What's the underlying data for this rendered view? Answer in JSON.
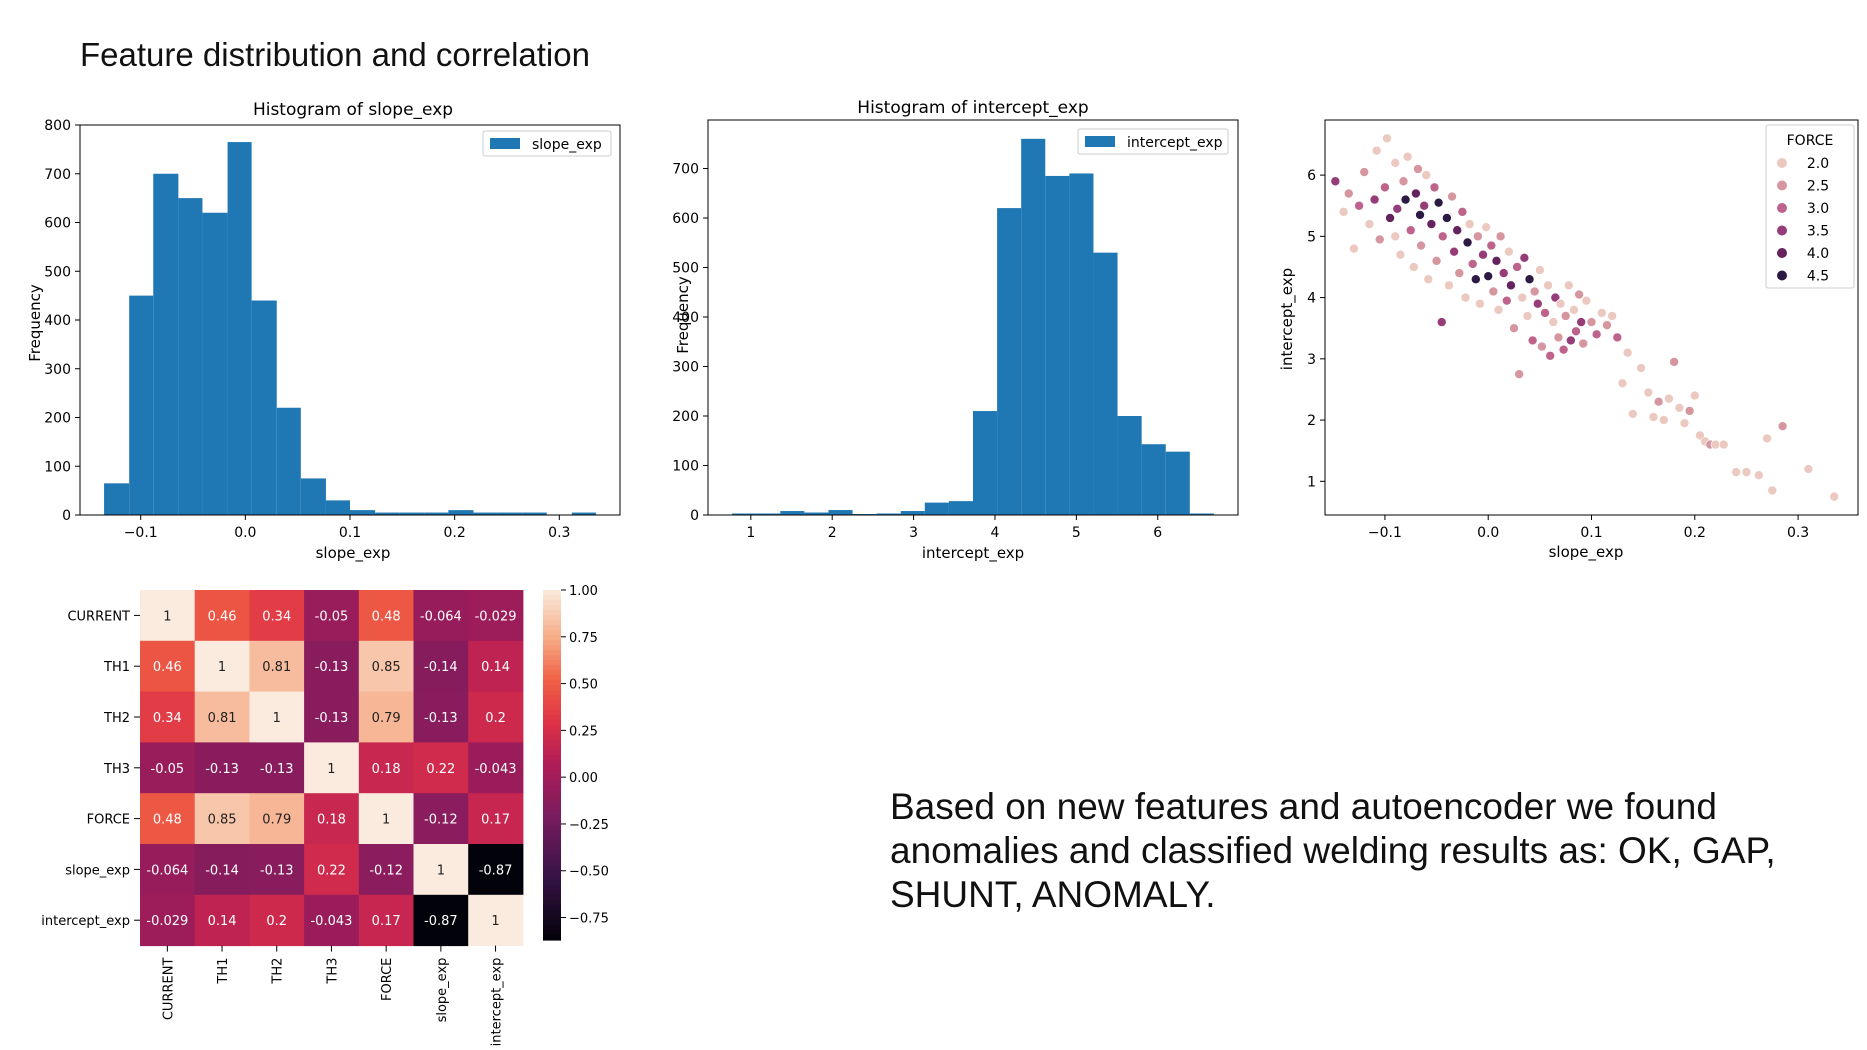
{
  "slide": {
    "title": "Feature distribution and correlation",
    "note": "Based on new features and autoencoder we found anomalies and classified welding results as: OK, GAP, SHUNT, ANOMALY."
  },
  "colors": {
    "bar": "#1f77b4",
    "scatter_low": "#ecc9c0",
    "scatter_high": "#2c1a45"
  },
  "chart_data": [
    {
      "type": "bar",
      "title": "Histogram of slope_exp",
      "xlabel": "slope_exp",
      "ylabel": "Frequency",
      "legend": [
        "slope_exp"
      ],
      "legend_position": "top-right",
      "grid": false,
      "bin_edges": [
        -0.135,
        -0.111,
        -0.088,
        -0.064,
        -0.041,
        -0.017,
        0.006,
        0.03,
        0.053,
        0.077,
        0.1,
        0.124,
        0.147,
        0.171,
        0.194,
        0.218,
        0.241,
        0.265,
        0.288,
        0.312,
        0.335
      ],
      "values": [
        65,
        450,
        700,
        650,
        620,
        765,
        440,
        220,
        75,
        30,
        10,
        5,
        5,
        5,
        10,
        5,
        5,
        5,
        0,
        5
      ],
      "xlim": [
        -0.158,
        0.358
      ],
      "ylim": [
        0,
        800
      ],
      "xticks": [
        -0.1,
        0.0,
        0.1,
        0.2,
        0.3
      ],
      "xtick_labels": [
        "−0.1",
        "0.0",
        "0.1",
        "0.2",
        "0.3"
      ],
      "yticks": [
        0,
        100,
        200,
        300,
        400,
        500,
        600,
        700,
        800
      ]
    },
    {
      "type": "bar",
      "title": "Histogram of intercept_exp",
      "xlabel": "intercept_exp",
      "ylabel": "Frequency",
      "legend": [
        "intercept_exp"
      ],
      "legend_position": "top-right",
      "grid": false,
      "bin_edges": [
        0.77,
        1.066,
        1.362,
        1.658,
        1.954,
        2.25,
        2.546,
        2.842,
        3.138,
        3.434,
        3.73,
        4.026,
        4.322,
        4.618,
        4.914,
        5.21,
        5.506,
        5.802,
        6.098,
        6.394,
        6.69
      ],
      "values": [
        3,
        3,
        8,
        5,
        10,
        2,
        3,
        8,
        25,
        28,
        210,
        620,
        760,
        685,
        690,
        530,
        200,
        143,
        128,
        3
      ],
      "xlim": [
        0.474,
        6.986
      ],
      "ylim": [
        0,
        798
      ],
      "xticks": [
        1,
        2,
        3,
        4,
        5,
        6
      ],
      "yticks": [
        0,
        100,
        200,
        300,
        400,
        500,
        600,
        700
      ]
    },
    {
      "type": "scatter",
      "xlabel": "slope_exp",
      "ylabel": "intercept_exp",
      "legend_title": "FORCE",
      "legend": [
        "2.0",
        "2.5",
        "3.0",
        "3.5",
        "4.0",
        "4.5"
      ],
      "legend_position": "top-right",
      "grid": false,
      "xlim": [
        -0.158,
        0.358
      ],
      "ylim": [
        0.45,
        6.9
      ],
      "xticks": [
        -0.1,
        0.0,
        0.1,
        0.2,
        0.3
      ],
      "xtick_labels": [
        "−0.1",
        "0.0",
        "0.1",
        "0.2",
        "0.3"
      ],
      "yticks": [
        1,
        2,
        3,
        4,
        5,
        6
      ],
      "points": [
        {
          "x": -0.148,
          "y": 5.9,
          "force": 3.5
        },
        {
          "x": -0.14,
          "y": 5.4,
          "force": 2.0
        },
        {
          "x": -0.135,
          "y": 5.7,
          "force": 2.5
        },
        {
          "x": -0.13,
          "y": 4.8,
          "force": 2.0
        },
        {
          "x": -0.125,
          "y": 5.5,
          "force": 3.0
        },
        {
          "x": -0.12,
          "y": 6.05,
          "force": 2.5
        },
        {
          "x": -0.115,
          "y": 5.2,
          "force": 2.0
        },
        {
          "x": -0.11,
          "y": 5.6,
          "force": 3.5
        },
        {
          "x": -0.108,
          "y": 6.4,
          "force": 2.0
        },
        {
          "x": -0.105,
          "y": 4.95,
          "force": 2.5
        },
        {
          "x": -0.1,
          "y": 5.8,
          "force": 3.0
        },
        {
          "x": -0.098,
          "y": 6.6,
          "force": 2.0
        },
        {
          "x": -0.095,
          "y": 5.3,
          "force": 4.0
        },
        {
          "x": -0.09,
          "y": 6.2,
          "force": 2.0
        },
        {
          "x": -0.09,
          "y": 5.0,
          "force": 2.0
        },
        {
          "x": -0.088,
          "y": 5.45,
          "force": 3.5
        },
        {
          "x": -0.085,
          "y": 4.7,
          "force": 2.0
        },
        {
          "x": -0.082,
          "y": 5.9,
          "force": 2.5
        },
        {
          "x": -0.08,
          "y": 5.6,
          "force": 4.5
        },
        {
          "x": -0.078,
          "y": 6.3,
          "force": 2.0
        },
        {
          "x": -0.075,
          "y": 5.1,
          "force": 3.0
        },
        {
          "x": -0.072,
          "y": 4.5,
          "force": 2.0
        },
        {
          "x": -0.07,
          "y": 5.7,
          "force": 4.0
        },
        {
          "x": -0.068,
          "y": 6.1,
          "force": 2.5
        },
        {
          "x": -0.066,
          "y": 5.35,
          "force": 4.5
        },
        {
          "x": -0.065,
          "y": 4.85,
          "force": 2.5
        },
        {
          "x": -0.062,
          "y": 5.5,
          "force": 3.5
        },
        {
          "x": -0.06,
          "y": 6.0,
          "force": 2.0
        },
        {
          "x": -0.058,
          "y": 4.3,
          "force": 2.0
        },
        {
          "x": -0.055,
          "y": 5.2,
          "force": 4.0
        },
        {
          "x": -0.052,
          "y": 5.8,
          "force": 3.0
        },
        {
          "x": -0.05,
          "y": 4.6,
          "force": 2.5
        },
        {
          "x": -0.048,
          "y": 5.55,
          "force": 4.5
        },
        {
          "x": -0.045,
          "y": 3.6,
          "force": 3.5
        },
        {
          "x": -0.044,
          "y": 5.0,
          "force": 3.0
        },
        {
          "x": -0.04,
          "y": 5.3,
          "force": 4.5
        },
        {
          "x": -0.038,
          "y": 4.2,
          "force": 2.0
        },
        {
          "x": -0.035,
          "y": 5.65,
          "force": 2.5
        },
        {
          "x": -0.033,
          "y": 4.75,
          "force": 3.5
        },
        {
          "x": -0.03,
          "y": 5.1,
          "force": 4.0
        },
        {
          "x": -0.028,
          "y": 4.4,
          "force": 2.5
        },
        {
          "x": -0.025,
          "y": 5.4,
          "force": 3.0
        },
        {
          "x": -0.022,
          "y": 4.0,
          "force": 2.0
        },
        {
          "x": -0.02,
          "y": 4.9,
          "force": 4.5
        },
        {
          "x": -0.018,
          "y": 5.2,
          "force": 2.0
        },
        {
          "x": -0.015,
          "y": 4.55,
          "force": 3.0
        },
        {
          "x": -0.012,
          "y": 4.3,
          "force": 4.5
        },
        {
          "x": -0.01,
          "y": 5.0,
          "force": 2.5
        },
        {
          "x": -0.008,
          "y": 3.9,
          "force": 2.0
        },
        {
          "x": -0.005,
          "y": 4.7,
          "force": 3.5
        },
        {
          "x": -0.002,
          "y": 5.15,
          "force": 2.0
        },
        {
          "x": 0.0,
          "y": 4.35,
          "force": 4.5
        },
        {
          "x": 0.003,
          "y": 4.85,
          "force": 3.0
        },
        {
          "x": 0.005,
          "y": 4.1,
          "force": 2.5
        },
        {
          "x": 0.008,
          "y": 4.6,
          "force": 4.0
        },
        {
          "x": 0.01,
          "y": 3.8,
          "force": 2.0
        },
        {
          "x": 0.012,
          "y": 5.0,
          "force": 2.5
        },
        {
          "x": 0.015,
          "y": 4.4,
          "force": 3.5
        },
        {
          "x": 0.018,
          "y": 3.95,
          "force": 3.0
        },
        {
          "x": 0.02,
          "y": 4.75,
          "force": 2.0
        },
        {
          "x": 0.022,
          "y": 4.2,
          "force": 4.0
        },
        {
          "x": 0.025,
          "y": 3.5,
          "force": 2.5
        },
        {
          "x": 0.028,
          "y": 4.5,
          "force": 3.0
        },
        {
          "x": 0.03,
          "y": 2.75,
          "force": 2.5
        },
        {
          "x": 0.033,
          "y": 4.0,
          "force": 2.0
        },
        {
          "x": 0.035,
          "y": 4.65,
          "force": 3.5
        },
        {
          "x": 0.038,
          "y": 3.7,
          "force": 2.0
        },
        {
          "x": 0.04,
          "y": 4.3,
          "force": 4.5
        },
        {
          "x": 0.043,
          "y": 3.3,
          "force": 3.0
        },
        {
          "x": 0.045,
          "y": 4.1,
          "force": 2.5
        },
        {
          "x": 0.048,
          "y": 3.9,
          "force": 3.5
        },
        {
          "x": 0.05,
          "y": 4.45,
          "force": 2.0
        },
        {
          "x": 0.052,
          "y": 3.2,
          "force": 2.5
        },
        {
          "x": 0.055,
          "y": 3.75,
          "force": 3.0
        },
        {
          "x": 0.058,
          "y": 4.2,
          "force": 2.0
        },
        {
          "x": 0.06,
          "y": 3.05,
          "force": 3.0
        },
        {
          "x": 0.063,
          "y": 3.6,
          "force": 2.0
        },
        {
          "x": 0.065,
          "y": 4.0,
          "force": 3.5
        },
        {
          "x": 0.068,
          "y": 3.35,
          "force": 2.5
        },
        {
          "x": 0.07,
          "y": 3.9,
          "force": 2.0
        },
        {
          "x": 0.073,
          "y": 3.15,
          "force": 3.0
        },
        {
          "x": 0.075,
          "y": 3.7,
          "force": 2.5
        },
        {
          "x": 0.078,
          "y": 4.2,
          "force": 2.0
        },
        {
          "x": 0.08,
          "y": 3.3,
          "force": 3.5
        },
        {
          "x": 0.083,
          "y": 3.8,
          "force": 2.0
        },
        {
          "x": 0.085,
          "y": 3.45,
          "force": 3.0
        },
        {
          "x": 0.088,
          "y": 4.05,
          "force": 2.5
        },
        {
          "x": 0.09,
          "y": 3.6,
          "force": 3.5
        },
        {
          "x": 0.092,
          "y": 3.25,
          "force": 2.5
        },
        {
          "x": 0.095,
          "y": 3.95,
          "force": 2.0
        },
        {
          "x": 0.1,
          "y": 3.6,
          "force": 2.5
        },
        {
          "x": 0.105,
          "y": 3.4,
          "force": 3.0
        },
        {
          "x": 0.11,
          "y": 3.75,
          "force": 2.0
        },
        {
          "x": 0.115,
          "y": 3.55,
          "force": 2.5
        },
        {
          "x": 0.12,
          "y": 3.7,
          "force": 2.0
        },
        {
          "x": 0.125,
          "y": 3.35,
          "force": 3.0
        },
        {
          "x": 0.13,
          "y": 2.6,
          "force": 2.0
        },
        {
          "x": 0.135,
          "y": 3.1,
          "force": 2.0
        },
        {
          "x": 0.14,
          "y": 2.1,
          "force": 2.0
        },
        {
          "x": 0.148,
          "y": 2.85,
          "force": 2.0
        },
        {
          "x": 0.155,
          "y": 2.45,
          "force": 2.0
        },
        {
          "x": 0.16,
          "y": 2.05,
          "force": 2.0
        },
        {
          "x": 0.165,
          "y": 2.3,
          "force": 2.5
        },
        {
          "x": 0.17,
          "y": 2.0,
          "force": 2.0
        },
        {
          "x": 0.175,
          "y": 2.35,
          "force": 2.0
        },
        {
          "x": 0.18,
          "y": 2.95,
          "force": 2.5
        },
        {
          "x": 0.185,
          "y": 2.2,
          "force": 2.0
        },
        {
          "x": 0.19,
          "y": 1.95,
          "force": 2.0
        },
        {
          "x": 0.195,
          "y": 2.15,
          "force": 2.5
        },
        {
          "x": 0.2,
          "y": 2.4,
          "force": 2.0
        },
        {
          "x": 0.205,
          "y": 1.75,
          "force": 2.0
        },
        {
          "x": 0.21,
          "y": 1.65,
          "force": 2.0
        },
        {
          "x": 0.215,
          "y": 1.6,
          "force": 2.5
        },
        {
          "x": 0.22,
          "y": 1.6,
          "force": 2.0
        },
        {
          "x": 0.228,
          "y": 1.6,
          "force": 2.0
        },
        {
          "x": 0.24,
          "y": 1.15,
          "force": 2.0
        },
        {
          "x": 0.25,
          "y": 1.15,
          "force": 2.0
        },
        {
          "x": 0.262,
          "y": 1.1,
          "force": 2.0
        },
        {
          "x": 0.27,
          "y": 1.7,
          "force": 2.0
        },
        {
          "x": 0.275,
          "y": 0.85,
          "force": 2.0
        },
        {
          "x": 0.285,
          "y": 1.9,
          "force": 2.5
        },
        {
          "x": 0.31,
          "y": 1.2,
          "force": 2.0
        },
        {
          "x": 0.335,
          "y": 0.75,
          "force": 2.0
        }
      ]
    },
    {
      "type": "heatmap",
      "labels": [
        "CURRENT",
        "TH1",
        "TH2",
        "TH3",
        "FORCE",
        "slope_exp",
        "intercept_exp"
      ],
      "matrix": [
        [
          1,
          0.46,
          0.34,
          -0.05,
          0.48,
          -0.064,
          -0.029
        ],
        [
          0.46,
          1,
          0.81,
          -0.13,
          0.85,
          -0.14,
          0.14
        ],
        [
          0.34,
          0.81,
          1,
          -0.13,
          0.79,
          -0.13,
          0.2
        ],
        [
          -0.05,
          -0.13,
          -0.13,
          1,
          0.18,
          0.22,
          -0.043
        ],
        [
          0.48,
          0.85,
          0.79,
          0.18,
          1,
          -0.12,
          0.17
        ],
        [
          -0.064,
          -0.14,
          -0.13,
          0.22,
          -0.12,
          1,
          -0.87
        ],
        [
          -0.029,
          0.14,
          0.2,
          -0.043,
          0.17,
          -0.87,
          1
        ]
      ],
      "vmin": -0.87,
      "vmax": 1.0,
      "colorbar_ticks": [
        1.0,
        0.75,
        0.5,
        0.25,
        0.0,
        -0.25,
        -0.5,
        -0.75
      ],
      "colorbar_tick_labels": [
        "1.00",
        "0.75",
        "0.50",
        "0.25",
        "0.00",
        "−0.25",
        "−0.50",
        "−0.75"
      ]
    }
  ]
}
